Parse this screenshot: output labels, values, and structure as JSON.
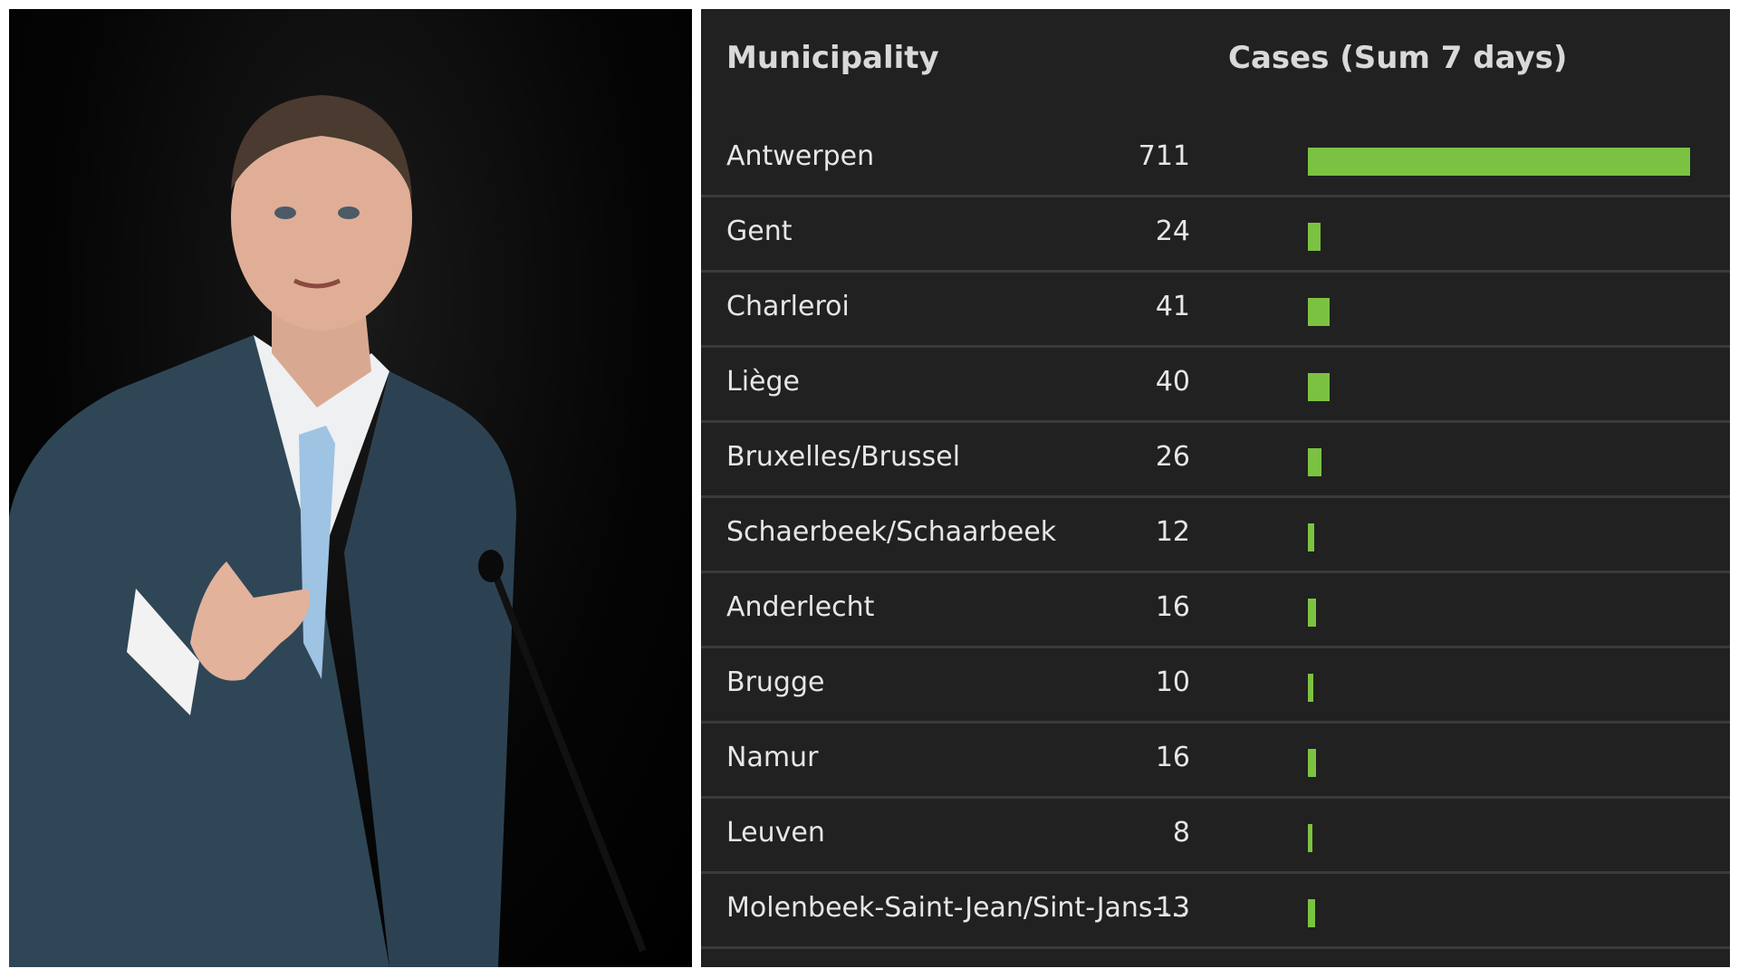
{
  "table": {
    "header_municipality": "Municipality",
    "header_cases": "Cases (Sum 7 days)",
    "bar_color": "#7cc242",
    "background_color": "#212121"
  },
  "chart_data": {
    "type": "bar",
    "orientation": "horizontal",
    "categories": [
      "Antwerpen",
      "Gent",
      "Charleroi",
      "Liège",
      "Bruxelles/Brussel",
      "Schaerbeek/Schaarbeek",
      "Anderlecht",
      "Brugge",
      "Namur",
      "Leuven",
      "Molenbeek-Saint-Jean/Sint-Jans-..."
    ],
    "values": [
      711,
      24,
      41,
      40,
      26,
      12,
      16,
      10,
      16,
      8,
      13
    ],
    "title": "",
    "xlabel": "Cases (Sum 7 days)",
    "ylabel": "Municipality",
    "xlim": [
      0,
      711
    ],
    "grid": false,
    "legend": "none"
  }
}
